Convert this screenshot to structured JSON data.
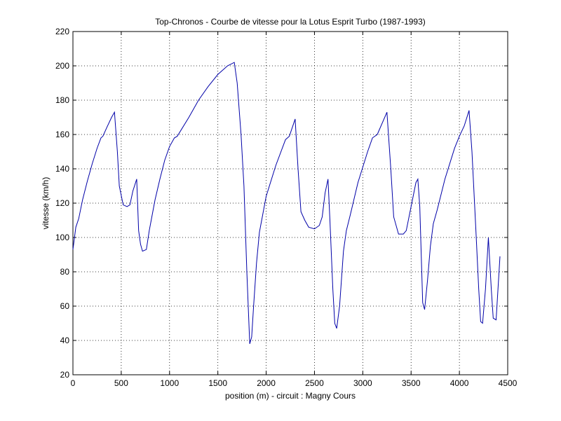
{
  "chart_data": {
    "type": "line",
    "title": "Top-Chronos - Courbe de vitesse pour la Lotus Esprit Turbo (1987-1993)",
    "x_label": "position (m) - circuit : Magny Cours",
    "y_label": "vitesse (km/h)",
    "x": [
      0,
      30,
      60,
      100,
      150,
      200,
      250,
      290,
      310,
      350,
      400,
      430,
      460,
      480,
      520,
      560,
      590,
      620,
      660,
      680,
      700,
      720,
      760,
      790,
      810,
      850,
      900,
      950,
      1000,
      1050,
      1080,
      1200,
      1300,
      1400,
      1500,
      1600,
      1670,
      1700,
      1740,
      1770,
      1800,
      1830,
      1850,
      1870,
      1900,
      1930,
      1960,
      2000,
      2100,
      2200,
      2240,
      2300,
      2330,
      2360,
      2400,
      2440,
      2500,
      2550,
      2580,
      2610,
      2640,
      2660,
      2690,
      2710,
      2730,
      2760,
      2800,
      2830,
      2870,
      2950,
      3050,
      3100,
      3150,
      3250,
      3290,
      3320,
      3370,
      3420,
      3450,
      3500,
      3550,
      3570,
      3590,
      3620,
      3640,
      3670,
      3700,
      3730,
      3770,
      3850,
      3950,
      4000,
      4050,
      4100,
      4130,
      4170,
      4200,
      4220,
      4240,
      4270,
      4300,
      4330,
      4350,
      4380,
      4420
    ],
    "series": [
      {
        "name": "vitesse",
        "color": "#0000a8",
        "values": [
          93,
          106,
          111,
          122,
          133,
          143,
          152,
          158,
          159,
          164,
          170,
          173,
          150,
          130,
          119,
          118,
          119,
          127,
          134,
          104,
          96,
          92,
          93,
          104,
          110,
          122,
          134,
          145,
          153,
          158,
          159,
          170,
          180,
          188,
          195,
          200,
          202,
          190,
          160,
          130,
          80,
          38,
          42,
          60,
          85,
          103,
          112,
          124,
          142,
          157,
          159,
          169,
          140,
          115,
          110,
          106,
          105,
          107,
          112,
          126,
          134,
          110,
          70,
          50,
          47,
          60,
          92,
          104,
          113,
          132,
          150,
          158,
          160,
          173,
          140,
          112,
          102,
          102,
          104,
          118,
          132,
          134,
          118,
          62,
          58,
          75,
          95,
          108,
          116,
          134,
          152,
          159,
          165,
          174,
          150,
          105,
          70,
          51,
          50,
          70,
          100,
          70,
          53,
          52,
          89
        ]
      }
    ],
    "xlim": [
      0,
      4500
    ],
    "xticks": [
      0,
      500,
      1000,
      1500,
      2000,
      2500,
      3000,
      3500,
      4000,
      4500
    ],
    "ylim": [
      20,
      220
    ],
    "yticks": [
      20,
      40,
      60,
      80,
      100,
      120,
      140,
      160,
      180,
      200,
      220
    ],
    "grid": true
  }
}
